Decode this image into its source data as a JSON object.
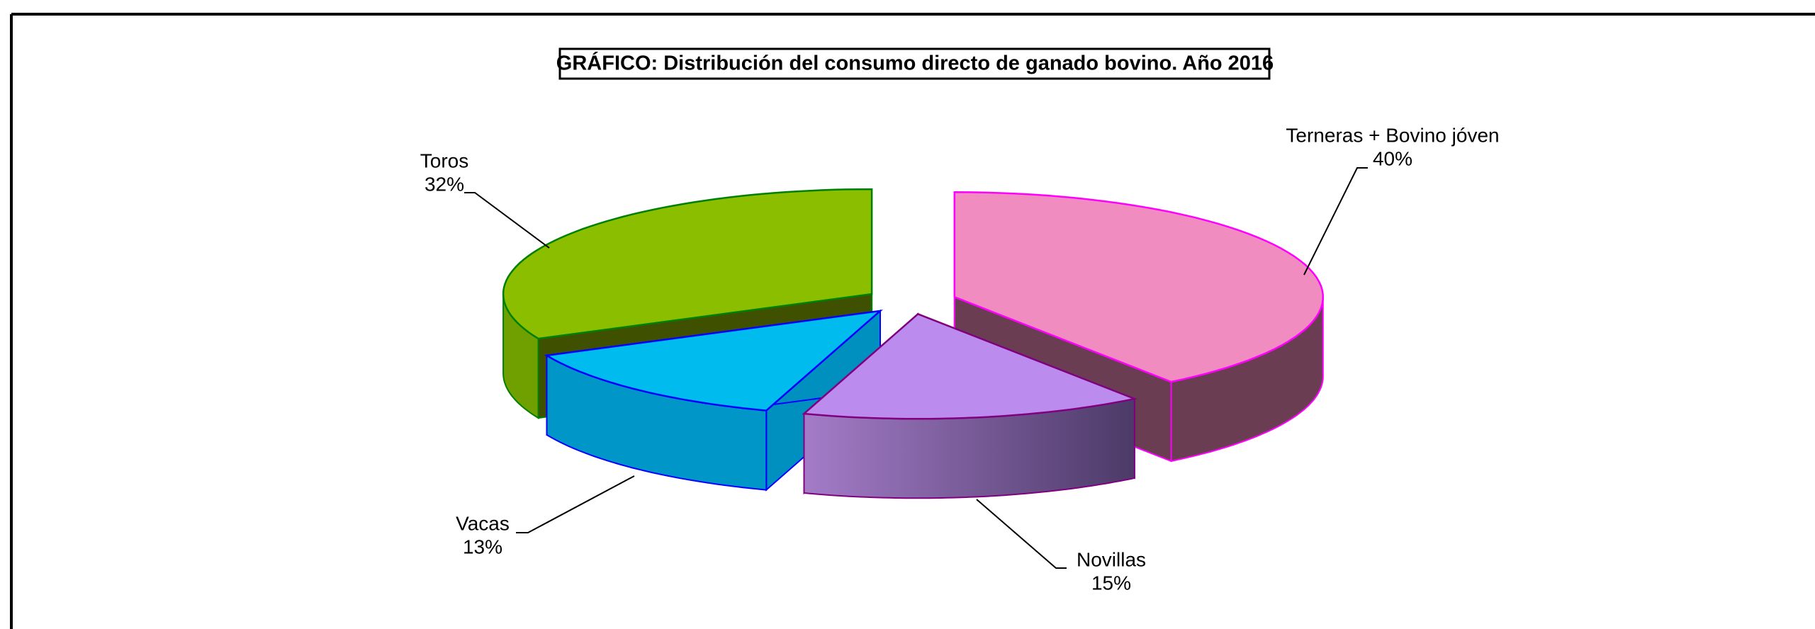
{
  "chart_data": {
    "type": "pie3d",
    "title": "GRÁFICO: Distribución del consumo directo de  ganado bovino. Año 2016",
    "categories": [
      "Terneras + Bovino jóven",
      "Novillas",
      "Vacas",
      "Toros"
    ],
    "values": [
      40,
      15,
      13,
      32
    ],
    "value_labels": [
      "40%",
      "15%",
      "13%",
      "32%"
    ],
    "colors": [
      "#f08cc0",
      "#bb8cee",
      "#00bbee",
      "#8cbe00"
    ]
  }
}
